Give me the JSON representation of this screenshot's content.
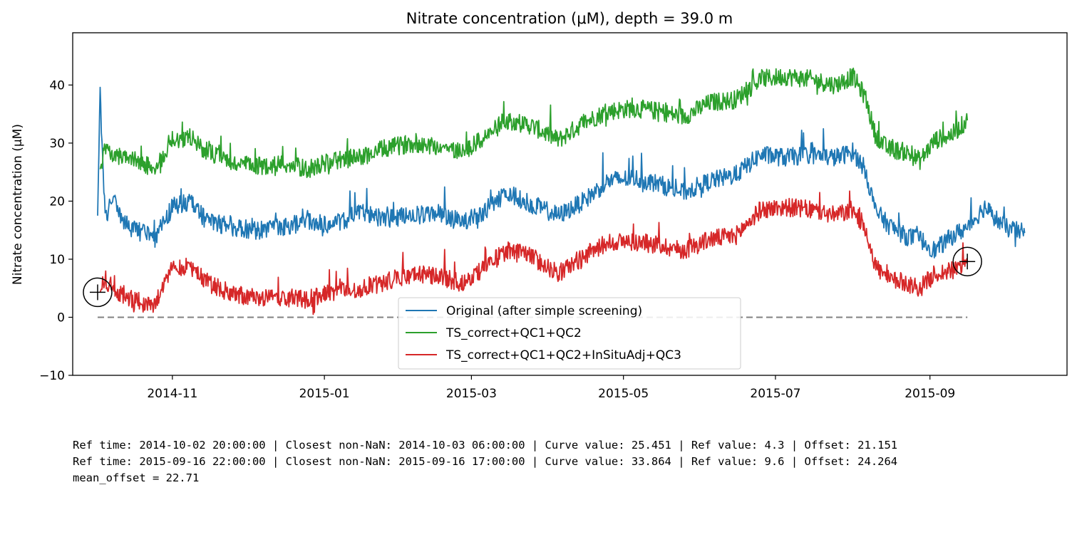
{
  "chart_data": {
    "type": "line",
    "title": "Nitrate concentration (μM), depth = 39.0 m",
    "xlabel": "",
    "ylabel": "Nitrate concentration (μM)",
    "x_ticks": [
      "2014-11",
      "2015-01",
      "2015-03",
      "2015-05",
      "2015-07",
      "2015-09"
    ],
    "y_ticks": [
      -10,
      0,
      10,
      20,
      30,
      40
    ],
    "xlim": [
      "2014-09-22",
      "2015-10-26"
    ],
    "ylim": [
      -10,
      49
    ],
    "grid": false,
    "legend_position": "lower center",
    "series": [
      {
        "name": "Original (after simple screening)",
        "color": "#1f77b4",
        "x": [
          "2014-10-02",
          "2014-10-03",
          "2014-10-05",
          "2014-10-08",
          "2014-10-13",
          "2014-10-20",
          "2014-10-25",
          "2014-11-01",
          "2014-11-08",
          "2014-11-15",
          "2014-11-25",
          "2014-12-05",
          "2014-12-15",
          "2014-12-25",
          "2015-01-05",
          "2015-01-15",
          "2015-01-25",
          "2015-02-05",
          "2015-02-15",
          "2015-02-25",
          "2015-03-05",
          "2015-03-15",
          "2015-03-25",
          "2015-04-05",
          "2015-04-15",
          "2015-04-25",
          "2015-05-05",
          "2015-05-15",
          "2015-05-25",
          "2015-06-05",
          "2015-06-15",
          "2015-06-25",
          "2015-07-05",
          "2015-07-15",
          "2015-07-25",
          "2015-08-01",
          "2015-08-06",
          "2015-08-10",
          "2015-08-15",
          "2015-08-22",
          "2015-08-28",
          "2015-09-03",
          "2015-09-10",
          "2015-09-16",
          "2015-09-23",
          "2015-10-01",
          "2015-10-09"
        ],
        "values": [
          17.5,
          38.5,
          17.0,
          20.5,
          16.0,
          14.5,
          13.5,
          19.0,
          20.0,
          16.5,
          15.5,
          15.0,
          15.5,
          16.5,
          16.0,
          18.0,
          17.0,
          17.5,
          18.0,
          16.5,
          17.5,
          21.5,
          19.5,
          17.5,
          20.0,
          23.5,
          24.0,
          23.0,
          21.5,
          23.5,
          24.5,
          28.0,
          27.5,
          28.0,
          27.5,
          28.5,
          25.5,
          18.5,
          16.0,
          14.0,
          13.5,
          11.5,
          14.0,
          15.5,
          19.0,
          15.5,
          14.5
        ]
      },
      {
        "name": "TS_correct+QC1+QC2",
        "color": "#2ca02c",
        "x": [
          "2014-10-03",
          "2014-10-05",
          "2014-10-08",
          "2014-10-13",
          "2014-10-20",
          "2014-10-25",
          "2014-11-01",
          "2014-11-08",
          "2014-11-15",
          "2014-11-25",
          "2014-12-05",
          "2014-12-15",
          "2014-12-25",
          "2015-01-05",
          "2015-01-15",
          "2015-01-25",
          "2015-02-05",
          "2015-02-15",
          "2015-02-25",
          "2015-03-05",
          "2015-03-15",
          "2015-03-25",
          "2015-04-05",
          "2015-04-15",
          "2015-04-25",
          "2015-05-05",
          "2015-05-15",
          "2015-05-25",
          "2015-06-05",
          "2015-06-15",
          "2015-06-25",
          "2015-07-05",
          "2015-07-15",
          "2015-07-25",
          "2015-08-01",
          "2015-08-06",
          "2015-08-10",
          "2015-08-15",
          "2015-08-22",
          "2015-08-28",
          "2015-09-03",
          "2015-09-10",
          "2015-09-16"
        ],
        "values": [
          25.5,
          29.0,
          27.5,
          28.0,
          26.5,
          25.5,
          30.5,
          31.0,
          28.5,
          26.5,
          26.0,
          26.5,
          25.5,
          27.0,
          27.5,
          29.0,
          30.0,
          29.5,
          28.5,
          30.5,
          34.0,
          33.0,
          30.5,
          33.5,
          35.5,
          36.0,
          35.5,
          34.5,
          37.0,
          37.5,
          41.0,
          41.5,
          41.0,
          40.0,
          41.5,
          38.0,
          31.5,
          29.0,
          28.5,
          27.0,
          30.5,
          31.5,
          33.9
        ]
      },
      {
        "name": "TS_correct+QC1+QC2+InSituAdj+QC3",
        "color": "#d62728",
        "x": [
          "2014-10-03",
          "2014-10-05",
          "2014-10-08",
          "2014-10-13",
          "2014-10-20",
          "2014-10-25",
          "2014-11-01",
          "2014-11-08",
          "2014-11-15",
          "2014-11-25",
          "2014-12-05",
          "2014-12-15",
          "2014-12-25",
          "2015-01-05",
          "2015-01-15",
          "2015-01-25",
          "2015-02-05",
          "2015-02-15",
          "2015-02-25",
          "2015-03-05",
          "2015-03-15",
          "2015-03-25",
          "2015-04-05",
          "2015-04-15",
          "2015-04-25",
          "2015-05-05",
          "2015-05-15",
          "2015-05-25",
          "2015-06-05",
          "2015-06-15",
          "2015-06-25",
          "2015-07-05",
          "2015-07-15",
          "2015-07-25",
          "2015-08-01",
          "2015-08-06",
          "2015-08-10",
          "2015-08-15",
          "2015-08-22",
          "2015-08-28",
          "2015-09-03",
          "2015-09-10",
          "2015-09-16"
        ],
        "values": [
          4.3,
          6.5,
          5.0,
          3.5,
          2.5,
          2.0,
          8.5,
          9.0,
          6.0,
          4.0,
          3.5,
          3.5,
          3.0,
          4.5,
          5.0,
          6.0,
          7.5,
          7.0,
          6.0,
          8.0,
          11.5,
          10.5,
          7.5,
          10.5,
          13.0,
          13.0,
          12.5,
          11.5,
          13.5,
          14.0,
          18.5,
          19.0,
          18.5,
          17.5,
          18.5,
          15.5,
          9.0,
          6.5,
          6.0,
          5.0,
          7.5,
          8.0,
          9.6
        ]
      },
      {
        "name": "",
        "color": "#808080",
        "dashed": true,
        "x": [
          "2014-10-02",
          "2015-09-16"
        ],
        "values": [
          0,
          0
        ]
      }
    ],
    "markers": [
      {
        "x": "2014-10-02",
        "y": 4.3,
        "symbol": "circled-plus"
      },
      {
        "x": "2015-09-16",
        "y": 9.6,
        "symbol": "circled-plus"
      }
    ]
  },
  "notes": [
    "Ref time: 2014-10-02 20:00:00 | Closest non-NaN: 2014-10-03 06:00:00 | Curve value: 25.451 | Ref value: 4.3 | Offset: 21.151",
    "Ref time: 2015-09-16 22:00:00 | Closest non-NaN: 2015-09-16 17:00:00 | Curve value: 33.864 | Ref value: 9.6 | Offset: 24.264",
    "mean_offset = 22.71"
  ]
}
